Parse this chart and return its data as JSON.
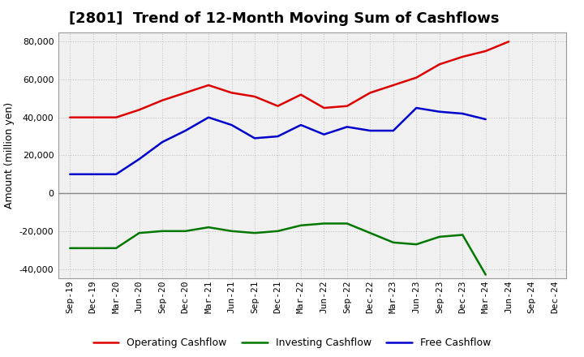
{
  "title": "[2801]  Trend of 12-Month Moving Sum of Cashflows",
  "ylabel": "Amount (million yen)",
  "x_labels": [
    "Sep-19",
    "Dec-19",
    "Mar-20",
    "Jun-20",
    "Sep-20",
    "Dec-20",
    "Mar-21",
    "Jun-21",
    "Sep-21",
    "Dec-21",
    "Mar-22",
    "Jun-22",
    "Sep-22",
    "Dec-22",
    "Mar-23",
    "Jun-23",
    "Sep-23",
    "Dec-23",
    "Mar-24",
    "Jun-24",
    "Sep-24",
    "Dec-24"
  ],
  "operating_cashflow": [
    40000,
    40000,
    40000,
    44000,
    49000,
    53000,
    57000,
    53000,
    51000,
    46000,
    52000,
    45000,
    46000,
    53000,
    57000,
    61000,
    68000,
    72000,
    75000,
    80000,
    null,
    null
  ],
  "investing_cashflow": [
    -29000,
    -29000,
    -29000,
    -21000,
    -20000,
    -20000,
    -18000,
    -20000,
    -21000,
    -20000,
    -17000,
    -16000,
    -16000,
    -21000,
    -26000,
    -27000,
    -23000,
    -22000,
    -43000,
    null,
    null,
    null
  ],
  "free_cashflow": [
    10000,
    10000,
    10000,
    18000,
    27000,
    33000,
    40000,
    36000,
    29000,
    30000,
    36000,
    31000,
    35000,
    33000,
    33000,
    45000,
    43000,
    42000,
    39000,
    null,
    null,
    null
  ],
  "operating_color": "#dd0000",
  "investing_color": "#007700",
  "free_color": "#0000cc",
  "ylim": [
    -45000,
    85000
  ],
  "yticks": [
    -40000,
    -20000,
    0,
    20000,
    40000,
    60000,
    80000
  ],
  "plot_bg_color": "#f0f0f0",
  "fig_bg_color": "#ffffff",
  "grid_color": "#bbbbbb",
  "zero_line_color": "#888888",
  "legend_labels": [
    "Operating Cashflow",
    "Investing Cashflow",
    "Free Cashflow"
  ],
  "title_fontsize": 13,
  "ylabel_fontsize": 9,
  "tick_fontsize": 8,
  "legend_fontsize": 9,
  "line_width": 1.8
}
